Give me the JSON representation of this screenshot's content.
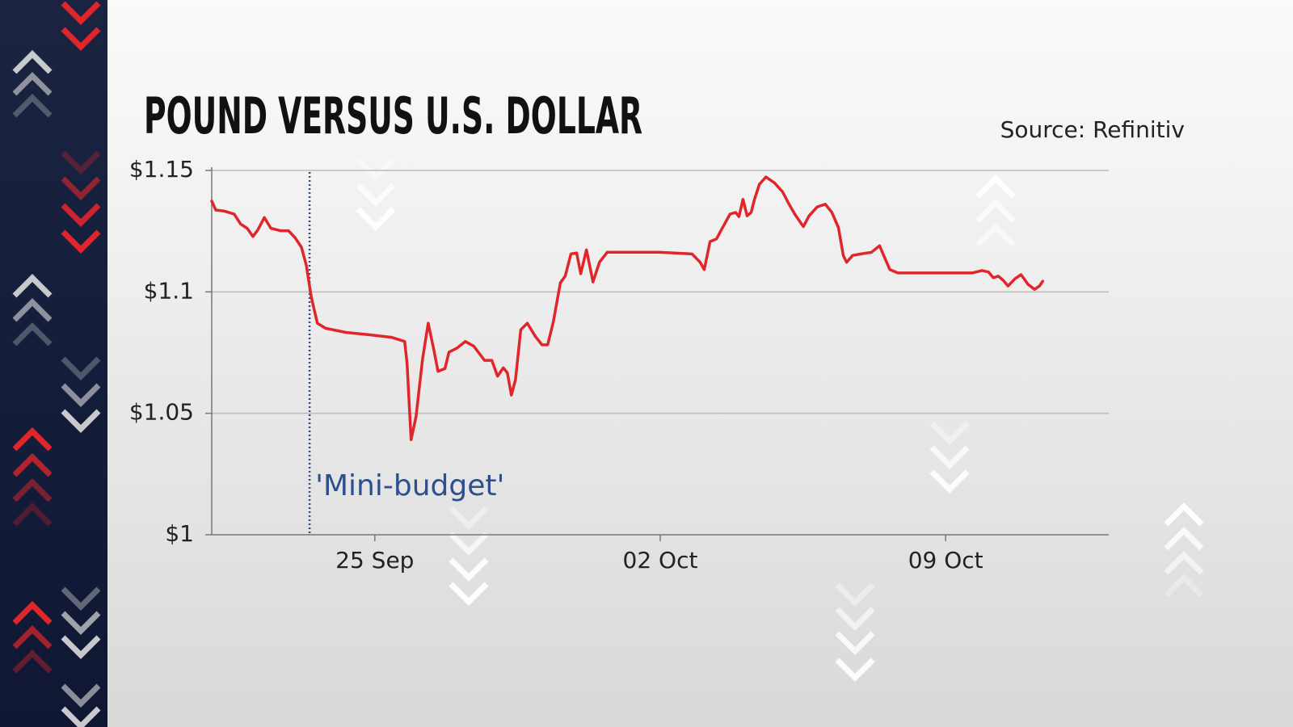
{
  "chart_data": {
    "type": "line",
    "title": "POUND VERSUS U.S. DOLLAR",
    "source": "Source: Refinitiv",
    "color": "#e0262b",
    "grid": true,
    "xlim": [
      21,
      43
    ],
    "xticks": [
      {
        "value": 25,
        "label": "25 Sep"
      },
      {
        "value": 32,
        "label": "02 Oct"
      },
      {
        "value": 39,
        "label": "09 Oct"
      }
    ],
    "ylim": [
      1,
      1.15
    ],
    "yticks": [
      {
        "value": 1,
        "label": "$1"
      },
      {
        "value": 1.05,
        "label": "$1.05"
      },
      {
        "value": 1.1,
        "label": "$1.1"
      },
      {
        "value": 1.15,
        "label": "$1.15"
      }
    ],
    "annotations": [
      {
        "text": "'Mini-budget'",
        "x": 23.4
      }
    ],
    "x": [
      21.0,
      21.1,
      21.3,
      21.55,
      21.71,
      21.87,
      22.01,
      22.13,
      22.29,
      22.45,
      22.68,
      22.88,
      23.04,
      23.2,
      23.32,
      23.44,
      23.59,
      23.79,
      24.29,
      24.9,
      25.41,
      25.73,
      25.79,
      25.89,
      26.01,
      26.17,
      26.31,
      26.45,
      26.55,
      26.72,
      26.82,
      27.02,
      27.22,
      27.43,
      27.69,
      27.87,
      28.01,
      28.15,
      28.25,
      28.35,
      28.45,
      28.58,
      28.74,
      28.94,
      29.1,
      29.24,
      29.38,
      29.55,
      29.67,
      29.81,
      29.95,
      30.05,
      30.19,
      30.35,
      30.51,
      30.7,
      31.16,
      31.97,
      32.78,
      32.98,
      33.08,
      33.22,
      33.38,
      33.52,
      33.71,
      33.85,
      33.93,
      34.03,
      34.13,
      34.23,
      34.31,
      34.43,
      34.59,
      34.8,
      35.0,
      35.16,
      35.3,
      35.51,
      35.65,
      35.85,
      36.05,
      36.21,
      36.37,
      36.49,
      36.57,
      36.72,
      36.92,
      37.18,
      37.38,
      37.48,
      37.63,
      37.83,
      38.64,
      39.65,
      39.89,
      40.05,
      40.17,
      40.29,
      40.41,
      40.53,
      40.7,
      40.85,
      41.02,
      41.18,
      41.3,
      41.38
    ],
    "values": [
      1.1374,
      1.1337,
      1.1333,
      1.132,
      1.1279,
      1.1262,
      1.1228,
      1.1255,
      1.1306,
      1.1262,
      1.1252,
      1.1252,
      1.1224,
      1.1184,
      1.1109,
      1.098,
      1.0871,
      1.085,
      1.0833,
      1.0823,
      1.0813,
      1.0796,
      1.0707,
      1.0391,
      1.0486,
      1.0724,
      1.0871,
      1.0759,
      1.0673,
      1.0684,
      1.0752,
      1.0769,
      1.0796,
      1.0776,
      1.0718,
      1.0718,
      1.0653,
      1.0687,
      1.0667,
      1.0575,
      1.0639,
      1.0844,
      1.0871,
      1.0816,
      1.0782,
      1.0782,
      1.0878,
      1.1037,
      1.1065,
      1.1156,
      1.116,
      1.1075,
      1.1173,
      1.1041,
      1.1122,
      1.1163,
      1.1163,
      1.1163,
      1.1156,
      1.1122,
      1.1092,
      1.1207,
      1.1218,
      1.1262,
      1.132,
      1.1327,
      1.131,
      1.1381,
      1.1313,
      1.1327,
      1.1381,
      1.1442,
      1.1473,
      1.1449,
      1.1412,
      1.1361,
      1.132,
      1.1269,
      1.1313,
      1.135,
      1.1361,
      1.1327,
      1.1265,
      1.115,
      1.1122,
      1.115,
      1.1156,
      1.1163,
      1.119,
      1.115,
      1.1092,
      1.1078,
      1.1078,
      1.1078,
      1.1088,
      1.1082,
      1.1058,
      1.1065,
      1.1048,
      1.1024,
      1.1054,
      1.1071,
      1.1031,
      1.101,
      1.1024,
      1.1044
    ]
  }
}
